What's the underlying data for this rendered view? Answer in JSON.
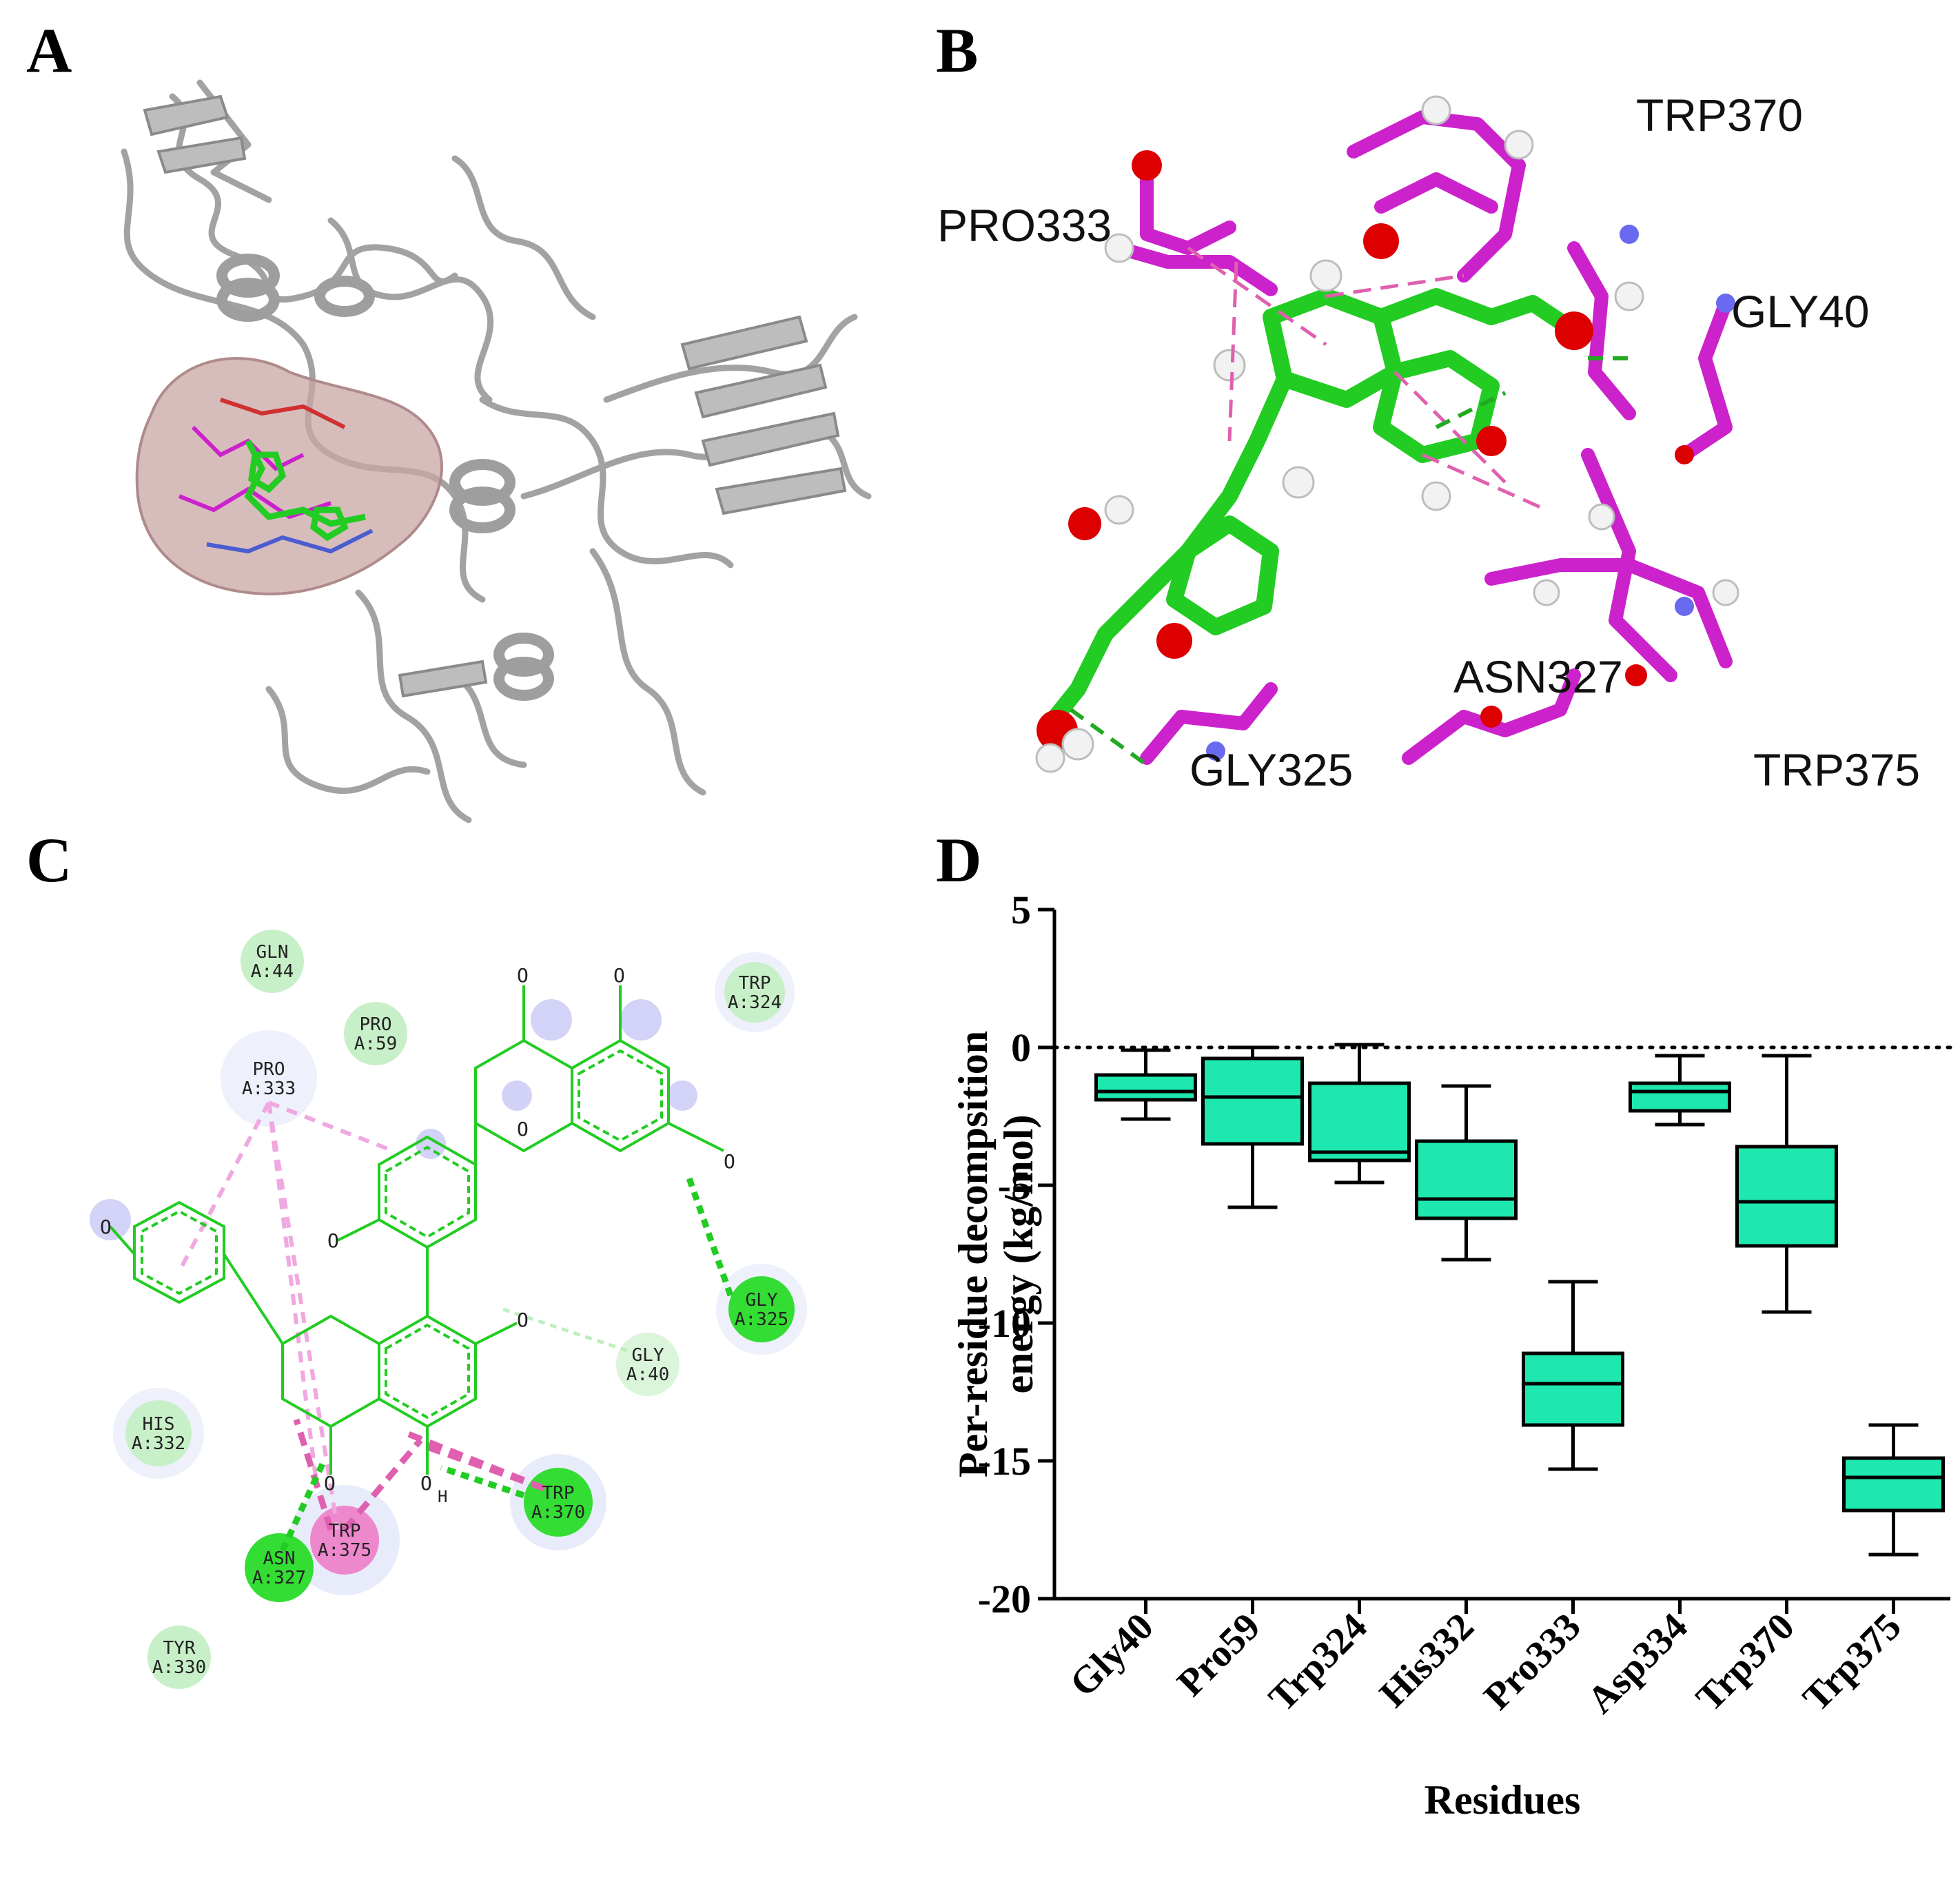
{
  "panels": {
    "a": {
      "letter": "A"
    },
    "b": {
      "letter": "B",
      "residue_labels": [
        "TRP370",
        "PRO333",
        "GLY40",
        "ASN327",
        "TRP375",
        "GLY325"
      ]
    },
    "c": {
      "letter": "C",
      "residues": [
        {
          "name": "GLN",
          "id": "A:44"
        },
        {
          "name": "PRO",
          "id": "A:59"
        },
        {
          "name": "PRO",
          "id": "A:333"
        },
        {
          "name": "TRP",
          "id": "A:324"
        },
        {
          "name": "GLY",
          "id": "A:325"
        },
        {
          "name": "GLY",
          "id": "A:40"
        },
        {
          "name": "HIS",
          "id": "A:332"
        },
        {
          "name": "TRP",
          "id": "A:375"
        },
        {
          "name": "TRP",
          "id": "A:370"
        },
        {
          "name": "ASN",
          "id": "A:327"
        },
        {
          "name": "TYR",
          "id": "A:330"
        }
      ],
      "atom_o": "O",
      "atom_h": "H"
    },
    "d": {
      "letter": "D"
    }
  },
  "colors": {
    "box_fill": "#1ee8b0",
    "ligand": "#22cc22",
    "residue_stick": "#cc22cc",
    "oxygen": "#dd0000",
    "protein": "#9e9e9e"
  },
  "chart_data": {
    "type": "box",
    "categories": [
      "Gly40",
      "Pro59",
      "Trp324",
      "His332",
      "Pro333",
      "Asp334",
      "Trp370",
      "Trp375"
    ],
    "boxes": [
      {
        "min": -2.6,
        "q1": -1.9,
        "median": -1.6,
        "q3": -1.0,
        "max": -0.1
      },
      {
        "min": -5.8,
        "q1": -3.5,
        "median": -1.8,
        "q3": -0.4,
        "max": 0.0
      },
      {
        "min": -4.9,
        "q1": -4.1,
        "median": -3.8,
        "q3": -1.3,
        "max": 0.1
      },
      {
        "min": -7.7,
        "q1": -6.2,
        "median": -5.5,
        "q3": -3.4,
        "max": -1.4
      },
      {
        "min": -15.3,
        "q1": -13.7,
        "median": -12.2,
        "q3": -11.1,
        "max": -8.5
      },
      {
        "min": -2.8,
        "q1": -2.3,
        "median": -1.6,
        "q3": -1.3,
        "max": -0.3
      },
      {
        "min": -9.6,
        "q1": -7.2,
        "median": -5.6,
        "q3": -3.6,
        "max": -0.3
      },
      {
        "min": -18.4,
        "q1": -16.8,
        "median": -15.6,
        "q3": -14.9,
        "max": -13.7
      }
    ],
    "ylim": [
      -20,
      5
    ],
    "yticks": [
      5,
      0,
      -5,
      -10,
      -15,
      -20
    ],
    "reference_line": 0,
    "xlabel": "Residues",
    "ylabel": "Per-residue decompsition energy (kg/mol)",
    "grid": false
  }
}
